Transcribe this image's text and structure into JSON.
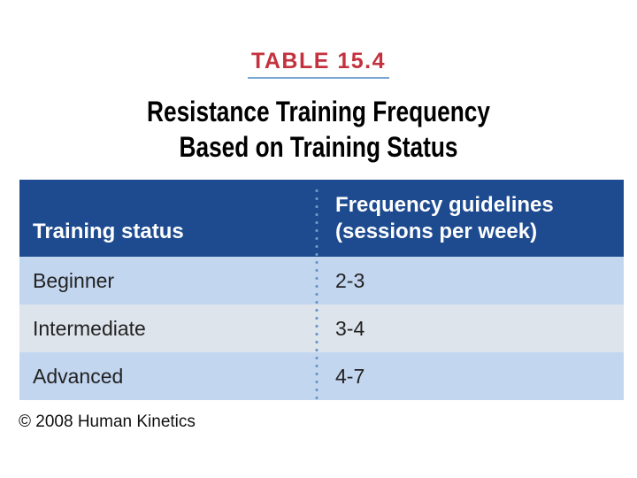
{
  "table_number": "TABLE 15.4",
  "title": {
    "line1": "Resistance Training Frequency",
    "line2": "Based on Training Status"
  },
  "table": {
    "headers": {
      "col1": "Training status",
      "col2_line1": "Frequency guidelines",
      "col2_line2": "(sessions per week)"
    },
    "rows": [
      {
        "status": "Beginner",
        "frequency": "2-3"
      },
      {
        "status": "Intermediate",
        "frequency": "3-4"
      },
      {
        "status": "Advanced",
        "frequency": "4-7"
      }
    ]
  },
  "copyright": "© 2008 Human Kinetics",
  "colors": {
    "label_red": "#c3323e",
    "header_blue": "#1e4b8f",
    "row_light_blue": "#c3d6f0",
    "row_grey": "#dde4ec"
  }
}
